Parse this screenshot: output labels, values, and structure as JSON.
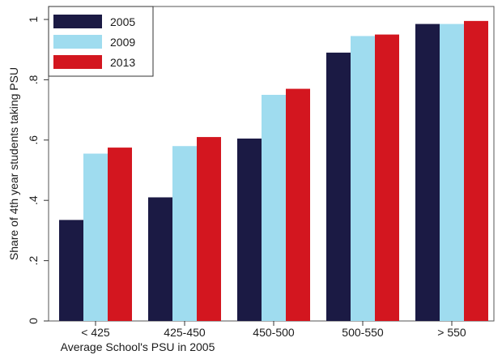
{
  "chart_data": {
    "type": "bar",
    "xlabel": "Average School's PSU in 2005",
    "ylabel": "Share of 4th year students taking PSU",
    "ylim": [
      0,
      1
    ],
    "yticks": [
      "0",
      ".2",
      ".4",
      ".6",
      ".8",
      "1"
    ],
    "ytick_values": [
      0,
      0.2,
      0.4,
      0.6,
      0.8,
      1
    ],
    "categories": [
      "< 425",
      "425-450",
      "450-500",
      "500-550",
      "> 550"
    ],
    "series": [
      {
        "name": "2005",
        "color": "#1b1a44",
        "values": [
          0.335,
          0.41,
          0.605,
          0.89,
          0.985
        ]
      },
      {
        "name": "2009",
        "color": "#9fdcef",
        "values": [
          0.555,
          0.58,
          0.75,
          0.945,
          0.985
        ]
      },
      {
        "name": "2013",
        "color": "#d3161f",
        "values": [
          0.575,
          0.61,
          0.77,
          0.95,
          0.995
        ]
      }
    ],
    "legend_position": "top-left",
    "grid": false
  }
}
